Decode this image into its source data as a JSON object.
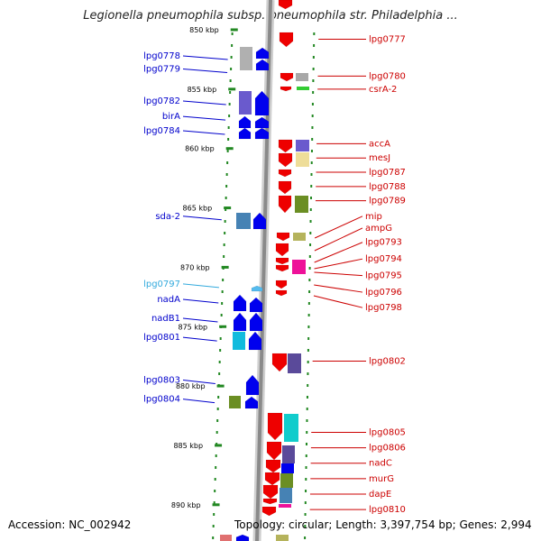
{
  "title": "Legionella pneumophila subsp. pneumophila str. Philadelphia ...",
  "footer": {
    "accession": "Accession: NC_002942",
    "topology": "Topology: circular; Length: 3,397,754 bp; Genes: 2,994"
  },
  "colors": {
    "left_label": "#0000cc",
    "right_label": "#cc0000",
    "cyan_label": "#33aadd",
    "tick": "#228822"
  },
  "scale": {
    "kbp_labels": [
      "850 kbp",
      "855 kbp",
      "860 kbp",
      "865 kbp",
      "870 kbp",
      "875 kbp",
      "880 kbp",
      "885 kbp",
      "890 kbp"
    ],
    "kbp_values": [
      850,
      855,
      860,
      865,
      870,
      875,
      880,
      885,
      890
    ]
  },
  "left_genes": [
    {
      "label": "lpg0778",
      "kbp": 852.2
    },
    {
      "label": "lpg0779",
      "kbp": 853.3
    },
    {
      "label": "lpg0782",
      "kbp": 856.0
    },
    {
      "label": "birA",
      "kbp": 857.3
    },
    {
      "label": "lpg0784",
      "kbp": 858.5
    },
    {
      "label": "sda-2",
      "kbp": 865.7
    },
    {
      "label": "lpg0797",
      "kbp": 871.4
    },
    {
      "label": "nadA",
      "kbp": 872.7
    },
    {
      "label": "nadB1",
      "kbp": 874.3
    },
    {
      "label": "lpg0801",
      "kbp": 875.9
    },
    {
      "label": "lpg0803",
      "kbp": 879.5
    },
    {
      "label": "lpg0804",
      "kbp": 881.1
    }
  ],
  "right_genes": [
    {
      "label": "lpg0777",
      "kbp": 850.8
    },
    {
      "label": "lpg0780",
      "kbp": 853.9
    },
    {
      "label": "csrA-2",
      "kbp": 855.0
    },
    {
      "label": "accA",
      "kbp": 859.6
    },
    {
      "label": "mesJ",
      "kbp": 860.8
    },
    {
      "label": "lpg0787",
      "kbp": 862.0
    },
    {
      "label": "lpg0788",
      "kbp": 863.2
    },
    {
      "label": "lpg0789",
      "kbp": 864.4
    },
    {
      "label": "mip",
      "kbp": 865.7
    },
    {
      "label": "ampG",
      "kbp": 866.7
    },
    {
      "label": "lpg0793",
      "kbp": 867.9
    },
    {
      "label": "lpg0794",
      "kbp": 869.3
    },
    {
      "label": "lpg0795",
      "kbp": 870.7
    },
    {
      "label": "lpg0796",
      "kbp": 872.1
    },
    {
      "label": "lpg0798",
      "kbp": 873.4
    },
    {
      "label": "lpg0802",
      "kbp": 877.9
    },
    {
      "label": "lpg0805",
      "kbp": 883.9
    },
    {
      "label": "lpg0806",
      "kbp": 885.2
    },
    {
      "label": "nadC",
      "kbp": 886.5
    },
    {
      "label": "murG",
      "kbp": 887.8
    },
    {
      "label": "dapE",
      "kbp": 889.1
    },
    {
      "label": "lpg0810",
      "kbp": 890.4
    }
  ]
}
